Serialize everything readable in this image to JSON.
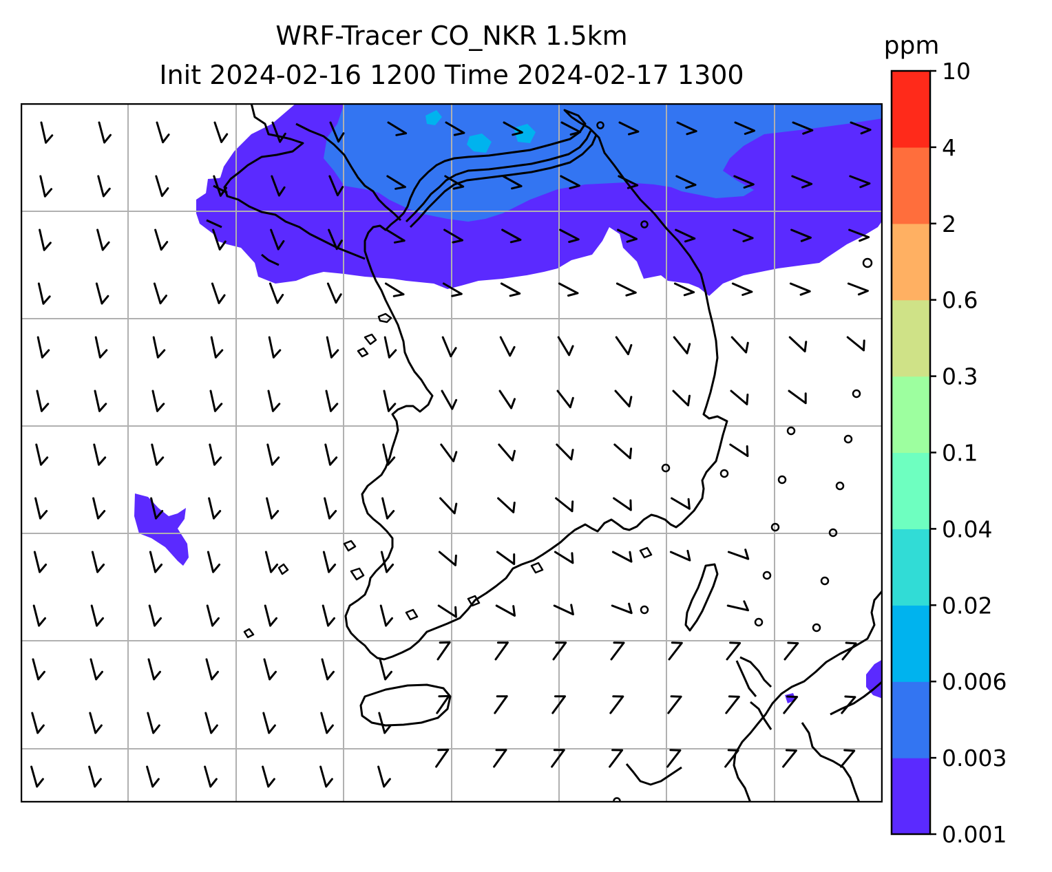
{
  "title": {
    "line1": "WRF-Tracer CO_NKR 1.5km",
    "line2": "Init 2024-02-16 1200 Time 2024-02-17 1300"
  },
  "colorbar": {
    "unit": "ppm",
    "levels": [
      "0.001",
      "0.003",
      "0.006",
      "0.02",
      "0.04",
      "0.1",
      "0.3",
      "0.6",
      "2",
      "4",
      "10"
    ],
    "colors": [
      "#5b2aff",
      "#3375f2",
      "#00b3ee",
      "#31dcd6",
      "#6effc0",
      "#9dff9f",
      "#cfe287",
      "#ffb062",
      "#ff6e3c",
      "#ff2a1a"
    ]
  },
  "map": {
    "field": "CO_NKR tracer concentration",
    "contour_levels_present": [
      "0.001",
      "0.003",
      "0.006",
      "0.02"
    ],
    "gridlines": true,
    "wind_barbs": true,
    "coastlines_and_borders": true
  }
}
